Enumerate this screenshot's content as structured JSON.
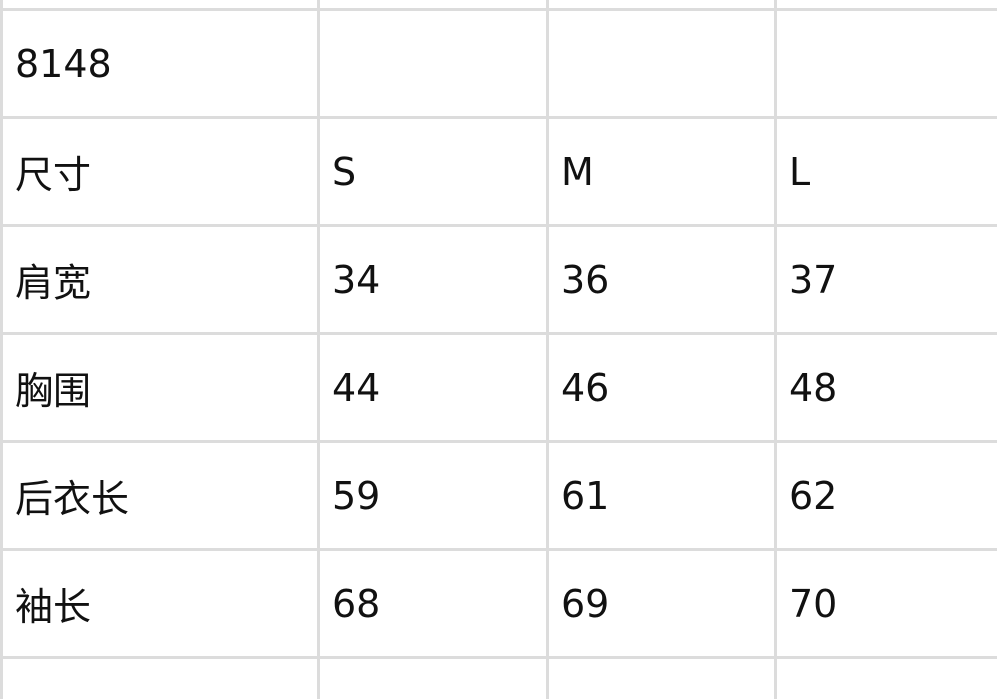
{
  "table": {
    "rows": [
      [
        "8148",
        "",
        "",
        ""
      ],
      [
        "尺寸",
        "S",
        "M",
        "L"
      ],
      [
        "肩宽",
        "34",
        "36",
        "37"
      ],
      [
        "胸围",
        "44",
        "46",
        "48"
      ],
      [
        "后衣长",
        "59",
        "61",
        "62"
      ],
      [
        "袖长",
        "68",
        "69",
        "70"
      ]
    ]
  },
  "colors": {
    "grid": "#dcdcdc",
    "text": "#111111"
  }
}
